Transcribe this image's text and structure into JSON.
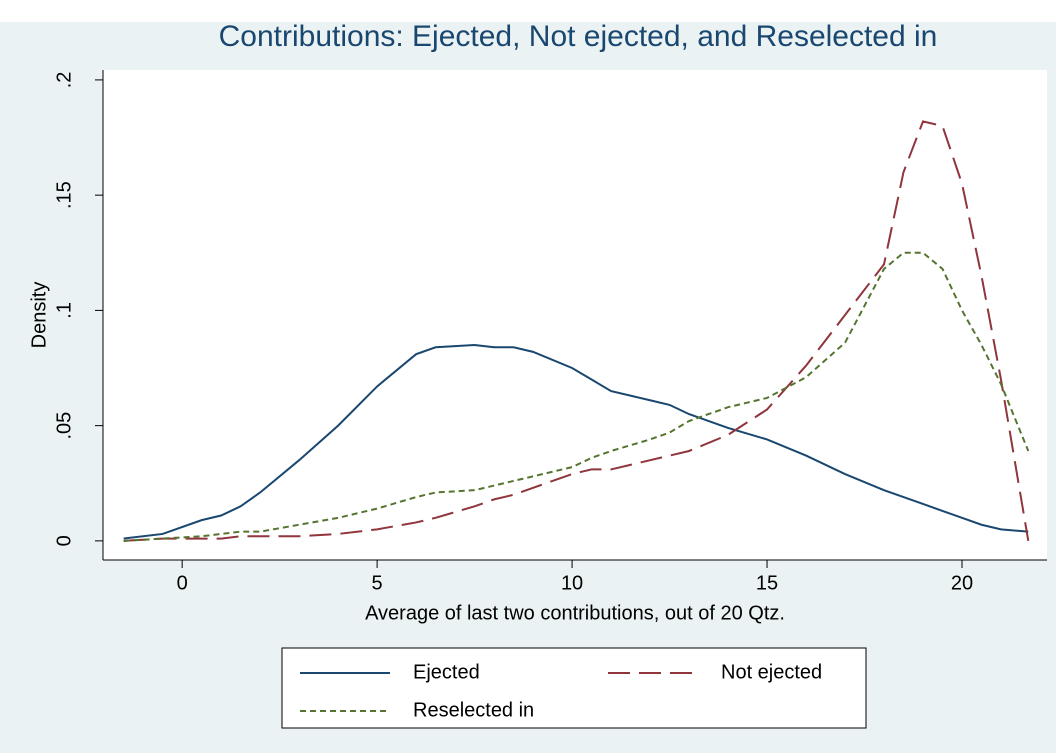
{
  "chart_data": {
    "type": "line",
    "title": "Contributions: Ejected, Not ejected, and Reselected in",
    "x_label": "Average of last two contributions, out of 20 Qtz.",
    "y_label": "Density",
    "x": [
      -1.5,
      -0.5,
      0.5,
      1,
      1.5,
      2,
      3,
      4,
      5,
      6,
      6.5,
      7.5,
      8,
      8.5,
      9,
      10,
      10.5,
      11,
      12,
      12.5,
      13,
      14,
      15,
      16,
      17,
      18,
      18.5,
      19,
      19.5,
      20,
      20.5,
      21,
      21.7
    ],
    "series": [
      {
        "name": "Ejected",
        "color": "#1a476f",
        "dash": "solid",
        "values": [
          0.001,
          0.003,
          0.009,
          0.011,
          0.015,
          0.021,
          0.035,
          0.05,
          0.067,
          0.081,
          0.084,
          0.085,
          0.084,
          0.084,
          0.082,
          0.075,
          0.07,
          0.065,
          0.061,
          0.059,
          0.055,
          0.049,
          0.044,
          0.037,
          0.029,
          0.022,
          0.019,
          0.016,
          0.013,
          0.01,
          0.007,
          0.005,
          0.004
        ]
      },
      {
        "name": "Not ejected",
        "color": "#90353b",
        "dash": "longdash",
        "values": [
          0,
          0.001,
          0.001,
          0.001,
          0.002,
          0.002,
          0.002,
          0.003,
          0.005,
          0.008,
          0.01,
          0.015,
          0.018,
          0.02,
          0.023,
          0.029,
          0.031,
          0.031,
          0.035,
          0.037,
          0.039,
          0.046,
          0.057,
          0.076,
          0.098,
          0.12,
          0.16,
          0.182,
          0.18,
          0.155,
          0.115,
          0.07,
          0
        ]
      },
      {
        "name": "Reselected in",
        "color": "#55752f",
        "dash": "shortdash",
        "values": [
          0,
          0.001,
          0.002,
          0.003,
          0.004,
          0.004,
          0.007,
          0.01,
          0.014,
          0.019,
          0.021,
          0.022,
          0.024,
          0.026,
          0.028,
          0.032,
          0.036,
          0.039,
          0.044,
          0.047,
          0.052,
          0.058,
          0.062,
          0.071,
          0.086,
          0.118,
          0.125,
          0.125,
          0.118,
          0.1,
          0.085,
          0.068,
          0.039
        ]
      }
    ],
    "xlim": [
      -2.03,
      22.18
    ],
    "ylim": [
      -0.0083,
      0.2043
    ],
    "xticks": [
      0,
      5,
      10,
      15,
      20
    ],
    "yticks": [
      0,
      {
        "value": 0.05,
        "label": ".05"
      },
      {
        "value": 0.1,
        "label": ".1"
      },
      {
        "value": 0.15,
        "label": ".15"
      },
      {
        "value": 0.2,
        "label": ".2"
      }
    ]
  }
}
